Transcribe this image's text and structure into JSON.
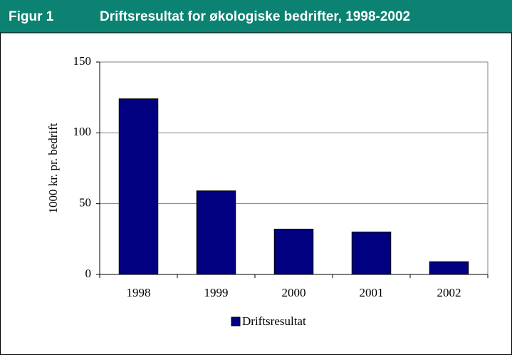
{
  "chart_data": {
    "type": "bar",
    "label": "Figur 1",
    "title": "Driftsresultat for økologiske bedrifter, 1998-2002",
    "y_label": "1000 kr. pr. bedrift",
    "categories": [
      "1998",
      "1999",
      "2000",
      "2001",
      "2002"
    ],
    "series": [
      {
        "name": "Driftsresultat",
        "color": "#000080",
        "values": [
          124,
          59,
          32,
          30,
          9
        ]
      }
    ],
    "ylim": [
      0,
      150
    ],
    "yticks": [
      0,
      50,
      100,
      150
    ],
    "grid": true,
    "legend": "bottom"
  }
}
